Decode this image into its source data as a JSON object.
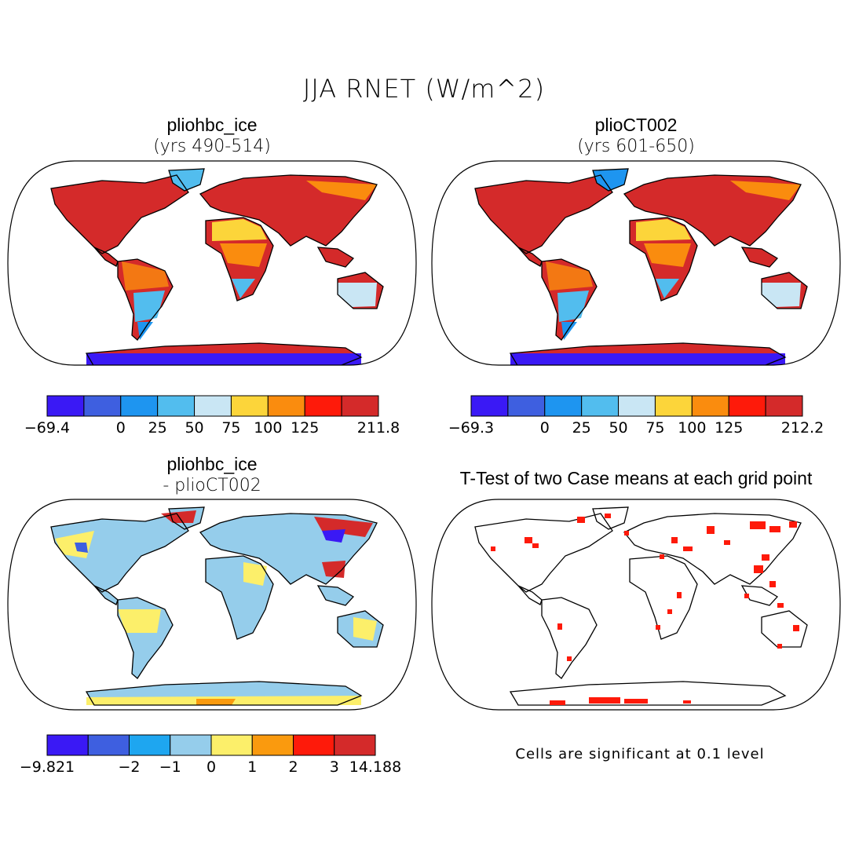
{
  "figure": {
    "title": "JJA RNET (W/m^2)",
    "footnote": "Cells are significant at 0.1 level"
  },
  "panels": [
    {
      "id": "case1",
      "title": "pliohbc_ice",
      "subtitle": "(yrs 490-514)",
      "colorbar": {
        "colors": [
          "#3a19f5",
          "#3e5fe0",
          "#1e95f0",
          "#52bdee",
          "#c9e6f4",
          "#fcd53a",
          "#fa8c0e",
          "#fe1a0a",
          "#d42a2a"
        ],
        "tick_labels": [
          "-69.4",
          "0",
          "25",
          "50",
          "75",
          "100",
          "125",
          "211.8"
        ]
      }
    },
    {
      "id": "case2",
      "title": "plioCT002",
      "subtitle": "(yrs 601-650)",
      "colorbar": {
        "colors": [
          "#3a19f5",
          "#3e5fe0",
          "#1e95f0",
          "#52bdee",
          "#c9e6f4",
          "#fcd53a",
          "#fa8c0e",
          "#fe1a0a",
          "#d42a2a"
        ],
        "tick_labels": [
          "-69.3",
          "0",
          "25",
          "50",
          "75",
          "100",
          "125",
          "212.2"
        ]
      }
    },
    {
      "id": "difference",
      "title": "pliohbc_ice",
      "subtitle": "- plioCT002",
      "colorbar": {
        "colors": [
          "#3a19f5",
          "#3e5fe0",
          "#1ea6f0",
          "#95cdeb",
          "#fcef6a",
          "#fa9a0e",
          "#fe1a0a",
          "#d42a2a"
        ],
        "tick_labels": [
          "-9.821",
          "-2",
          "-1",
          "0",
          "1",
          "2",
          "3",
          "14.188"
        ]
      }
    },
    {
      "id": "ttest",
      "title": "T-Test of two Case means at each grid point",
      "significance_color": "#fe1a0a"
    }
  ]
}
